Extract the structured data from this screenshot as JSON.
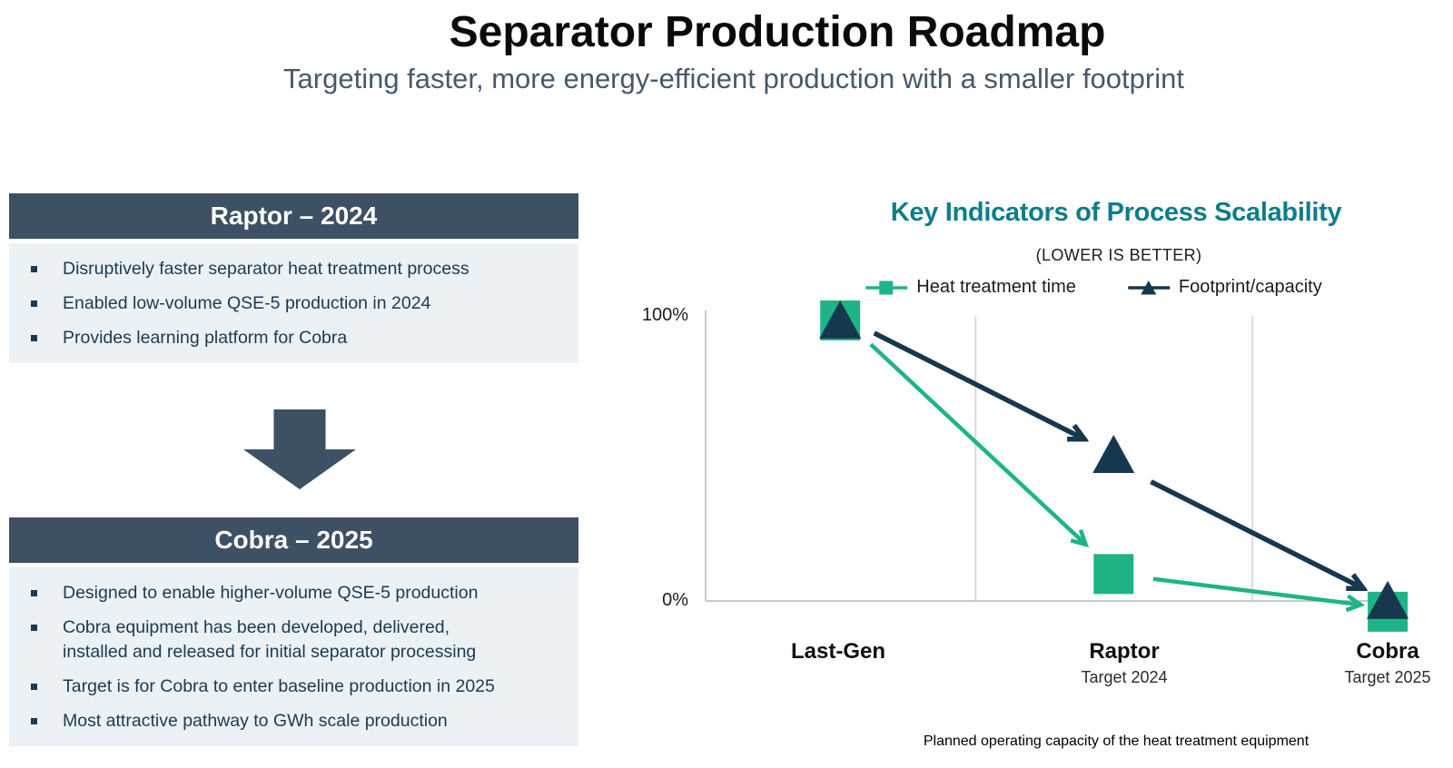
{
  "slide": {
    "title": "Separator Production Roadmap",
    "subtitle": "Targeting faster, more energy-efficient production with a smaller footprint"
  },
  "roadmap": {
    "raptor": {
      "title": "Raptor – 2024",
      "bullets": [
        "Disruptively faster separator heat treatment process",
        "Enabled low-volume QSE-5 production in 2024",
        "Provides learning platform for Cobra"
      ]
    },
    "down_arrow": "down-arrow",
    "cobra": {
      "title": "Cobra – 2025",
      "bullets": [
        "Designed to enable higher-volume QSE-5 production",
        "Cobra equipment has been developed, delivered,\ninstalled and released for initial separator processing",
        "Target is for Cobra to enter baseline production in 2025",
        "Most attractive pathway to GWh scale production"
      ]
    }
  },
  "colors": {
    "accent_green": "#1fb487",
    "navy": "#16384e",
    "slate_header": "#3e5063",
    "teal_title": "#0e7d8a",
    "panel_bg": "#ecf1f5",
    "bullet_text": "#1b3a52",
    "subtitle_text": "#47586d",
    "gridline": "#dbdbdb",
    "axis": "#c7cbce"
  },
  "chart_data": {
    "type": "scatter",
    "title": "Key Indicators of Process Scalability",
    "subtitle": "(LOWER IS BETTER)",
    "categories": [
      "Last-Gen",
      "Raptor",
      "Cobra"
    ],
    "category_sublabels": [
      "",
      "Target 2024",
      "Target 2025"
    ],
    "series": [
      {
        "name": "Heat treatment time",
        "marker": "square",
        "color": "#1fb487",
        "values": [
          100,
          12,
          1
        ]
      },
      {
        "name": "Footprint/capacity",
        "marker": "triangle",
        "color": "#16384e",
        "values": [
          100,
          50,
          2
        ]
      }
    ],
    "ylim": [
      0,
      100
    ],
    "ytick_labels": [
      "100%",
      "0%"
    ],
    "grid": "vertical",
    "legend_position": "top",
    "annotations": "arrows between consecutive points per series",
    "caption": "Planned operating capacity of the heat treatment equipment"
  }
}
